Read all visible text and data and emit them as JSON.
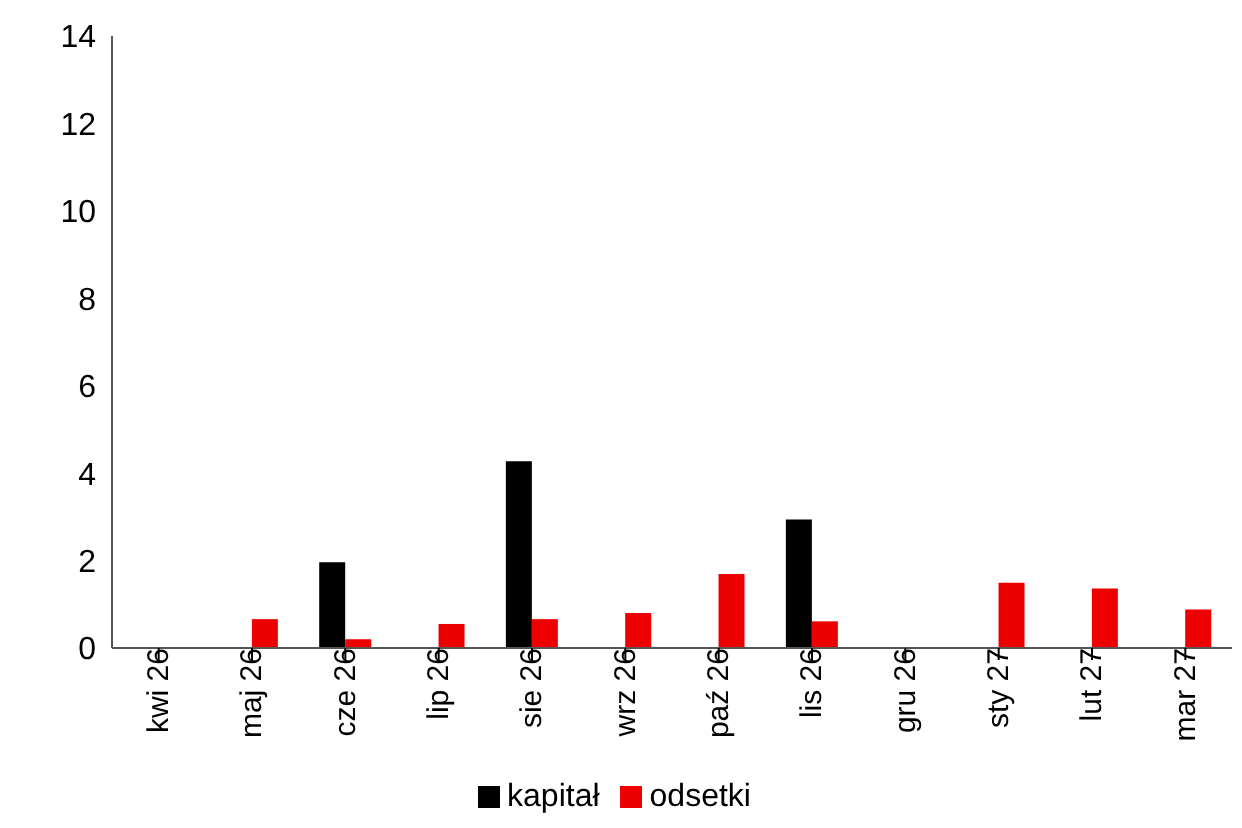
{
  "chart_data": {
    "type": "bar",
    "categories": [
      "kwi 26",
      "maj 26",
      "cze 26",
      "lip 26",
      "sie 26",
      "wrz 26",
      "paź 26",
      "lis 26",
      "gru 26",
      "sty 27",
      "lut 27",
      "mar 27"
    ],
    "series": [
      {
        "name": "kapitał",
        "color": "#000000",
        "values": [
          0,
          0,
          1.96,
          0,
          4.27,
          0,
          0,
          2.94,
          0,
          0,
          0,
          0
        ]
      },
      {
        "name": "odsetki",
        "color": "#ee0000",
        "values": [
          0.02,
          0.66,
          0.2,
          0.55,
          0.66,
          0.8,
          1.69,
          0.61,
          0.02,
          1.49,
          1.36,
          0.88
        ]
      }
    ],
    "ylim": [
      0,
      14
    ],
    "yticks": [
      0,
      2,
      4,
      6,
      8,
      10,
      12,
      14
    ],
    "grid": false,
    "legend": "bottom"
  }
}
